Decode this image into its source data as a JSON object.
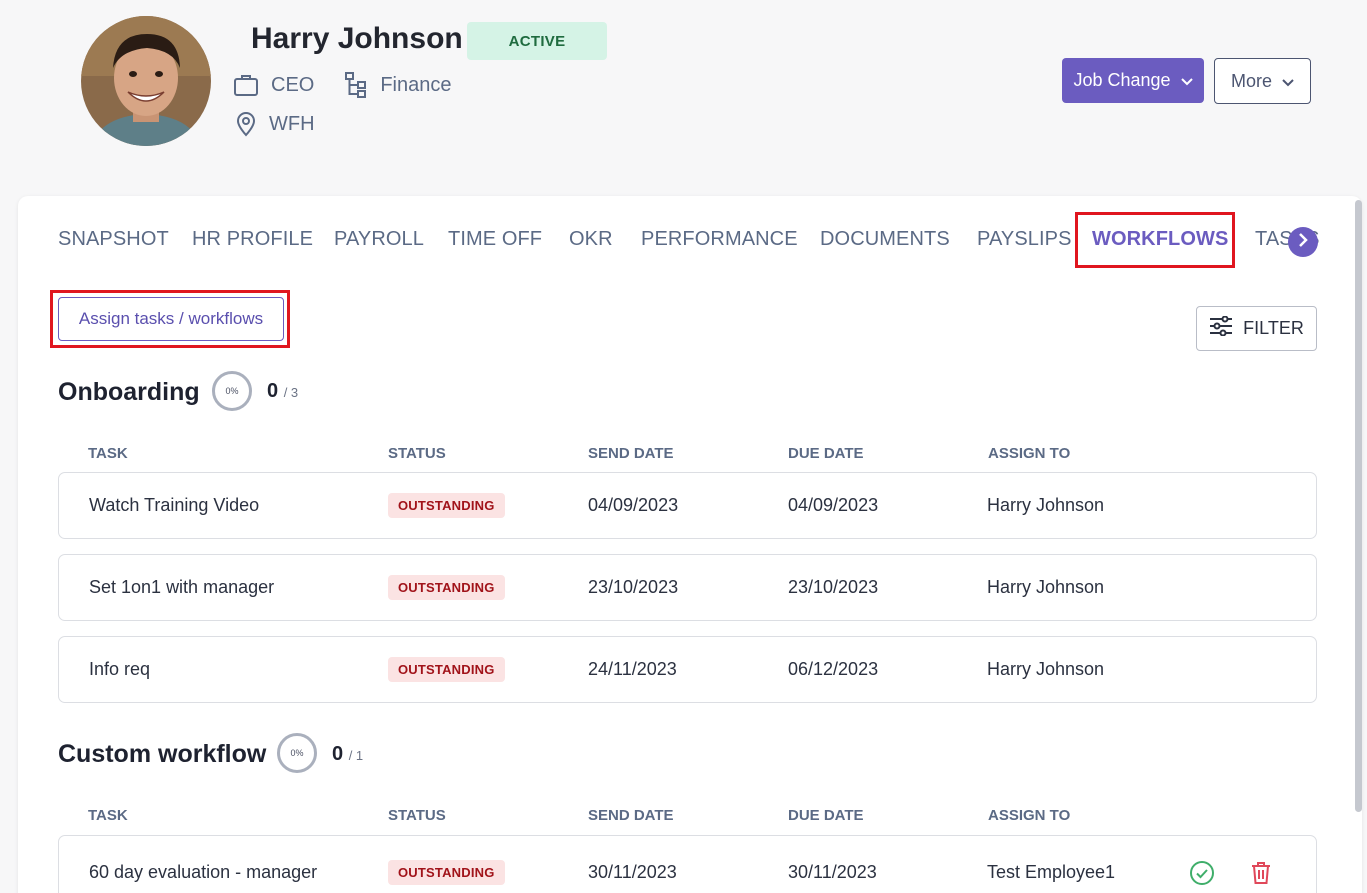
{
  "employee": {
    "name": "Harry Johnson",
    "status": "ACTIVE",
    "title": "CEO",
    "department": "Finance",
    "location": "WFH"
  },
  "header_actions": {
    "job_change": "Job Change",
    "more": "More"
  },
  "tabs": [
    "SNAPSHOT",
    "HR PROFILE",
    "PAYROLL",
    "TIME OFF",
    "OKR",
    "PERFORMANCE",
    "DOCUMENTS",
    "PAYSLIPS",
    "WORKFLOWS",
    "TASKS"
  ],
  "active_tab": "WORKFLOWS",
  "toolbar": {
    "assign_label": "Assign tasks / workflows",
    "filter_label": "FILTER"
  },
  "columns": {
    "task": "TASK",
    "status": "STATUS",
    "send_date": "SEND DATE",
    "due_date": "DUE DATE",
    "assign_to": "ASSIGN TO"
  },
  "workflows": [
    {
      "title": "Onboarding",
      "progress": "0%",
      "done": "0",
      "total": "/ 3",
      "tasks": [
        {
          "task": "Watch Training Video",
          "status": "OUTSTANDING",
          "send_date": "04/09/2023",
          "due_date": "04/09/2023",
          "assign_to": "Harry Johnson"
        },
        {
          "task": "Set 1on1 with manager",
          "status": "OUTSTANDING",
          "send_date": "23/10/2023",
          "due_date": "23/10/2023",
          "assign_to": "Harry Johnson"
        },
        {
          "task": "Info req",
          "status": "OUTSTANDING",
          "send_date": "24/11/2023",
          "due_date": "06/12/2023",
          "assign_to": "Harry Johnson"
        }
      ]
    },
    {
      "title": "Custom workflow",
      "progress": "0%",
      "done": "0",
      "total": "/ 1",
      "tasks": [
        {
          "task": "60 day evaluation - manager",
          "status": "OUTSTANDING",
          "send_date": "30/11/2023",
          "due_date": "30/11/2023",
          "assign_to": "Test Employee1"
        }
      ]
    }
  ],
  "colors": {
    "primary": "#6b5cc0",
    "active_badge_bg": "#d5f3e6",
    "outstanding_bg": "#fbe3e3",
    "outstanding_text": "#a1131a",
    "highlight": "#e0161f",
    "complete_icon": "#3fae6a",
    "delete_icon": "#e0485a"
  },
  "icons": [
    "briefcase-icon",
    "org-chart-icon",
    "location-pin-icon",
    "chevron-down-icon",
    "chevron-right-icon",
    "sliders-icon",
    "check-circle-icon",
    "trash-icon"
  ]
}
